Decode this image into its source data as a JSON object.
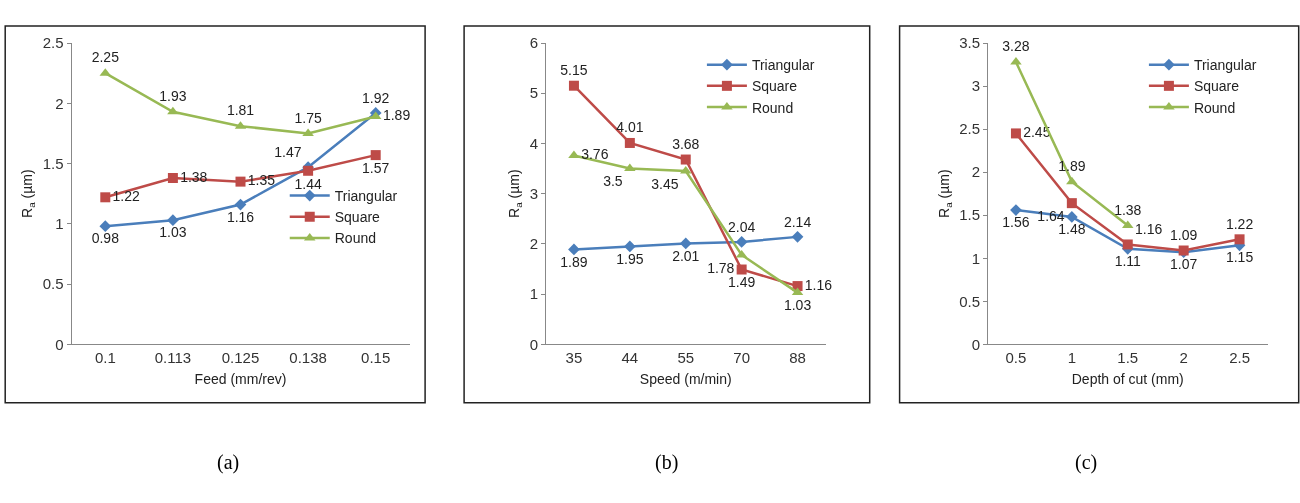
{
  "chart_data": [
    {
      "type": "line",
      "xlabel": "Feed (mm/rev)",
      "ylabel": "R$_{a}$ (µm)",
      "categories": [
        "0.1",
        "0.113",
        "0.125",
        "0.138",
        "0.15"
      ],
      "ylim": [
        0,
        2.5
      ],
      "yticks": [
        0,
        0.5,
        1,
        1.5,
        2,
        2.5
      ],
      "grid": false,
      "legend": "bottom right",
      "data_labels": true,
      "annotations": [
        "(a)"
      ],
      "series": [
        {
          "name": "Triangular",
          "color": "#4a7ebb",
          "marker": "diamond",
          "values": [
            0.98,
            1.03,
            1.16,
            1.47,
            1.92
          ]
        },
        {
          "name": "Square",
          "color": "#be4b48",
          "marker": "square",
          "values": [
            1.22,
            1.38,
            1.35,
            1.44,
            1.57
          ]
        },
        {
          "name": "Round",
          "color": "#98b954",
          "marker": "triangle",
          "values": [
            2.25,
            1.93,
            1.81,
            1.75,
            1.89
          ]
        }
      ]
    },
    {
      "type": "line",
      "xlabel": "Speed (m/min)",
      "ylabel": "R$_{a}$ (µm)",
      "categories": [
        "35",
        "44",
        "55",
        "70",
        "88"
      ],
      "ylim": [
        0,
        6
      ],
      "yticks": [
        0,
        1,
        2,
        3,
        4,
        5,
        6
      ],
      "grid": false,
      "legend": "top right",
      "data_labels": true,
      "annotations": [
        "(b)"
      ],
      "series": [
        {
          "name": "Triangular",
          "color": "#4a7ebb",
          "marker": "diamond",
          "values": [
            1.89,
            1.95,
            2.01,
            2.04,
            2.14
          ]
        },
        {
          "name": "Square",
          "color": "#be4b48",
          "marker": "square",
          "values": [
            5.15,
            4.01,
            3.68,
            1.49,
            1.16
          ]
        },
        {
          "name": "Round",
          "color": "#98b954",
          "marker": "triangle",
          "values": [
            3.76,
            3.5,
            3.45,
            1.78,
            1.03
          ]
        }
      ]
    },
    {
      "type": "line",
      "xlabel": "Depth of cut (mm)",
      "ylabel": "R$_{a}$ (µm)",
      "categories": [
        "0.5",
        "1",
        "1.5",
        "2",
        "2.5"
      ],
      "ylim": [
        0,
        3.5
      ],
      "yticks": [
        0,
        0.5,
        1,
        1.5,
        2,
        2.5,
        3,
        3.5
      ],
      "grid": false,
      "legend": "top right",
      "data_labels": true,
      "annotations": [
        "(c)"
      ],
      "series": [
        {
          "name": "Triangular",
          "color": "#4a7ebb",
          "marker": "diamond",
          "values": [
            1.56,
            1.48,
            1.11,
            1.07,
            1.15
          ]
        },
        {
          "name": "Square",
          "color": "#be4b48",
          "marker": "square",
          "values": [
            2.45,
            1.64,
            1.16,
            1.09,
            1.22
          ]
        },
        {
          "name": "Round",
          "color": "#98b954",
          "marker": "triangle",
          "values": [
            3.28,
            1.89,
            1.38,
            null,
            null
          ]
        }
      ]
    }
  ]
}
